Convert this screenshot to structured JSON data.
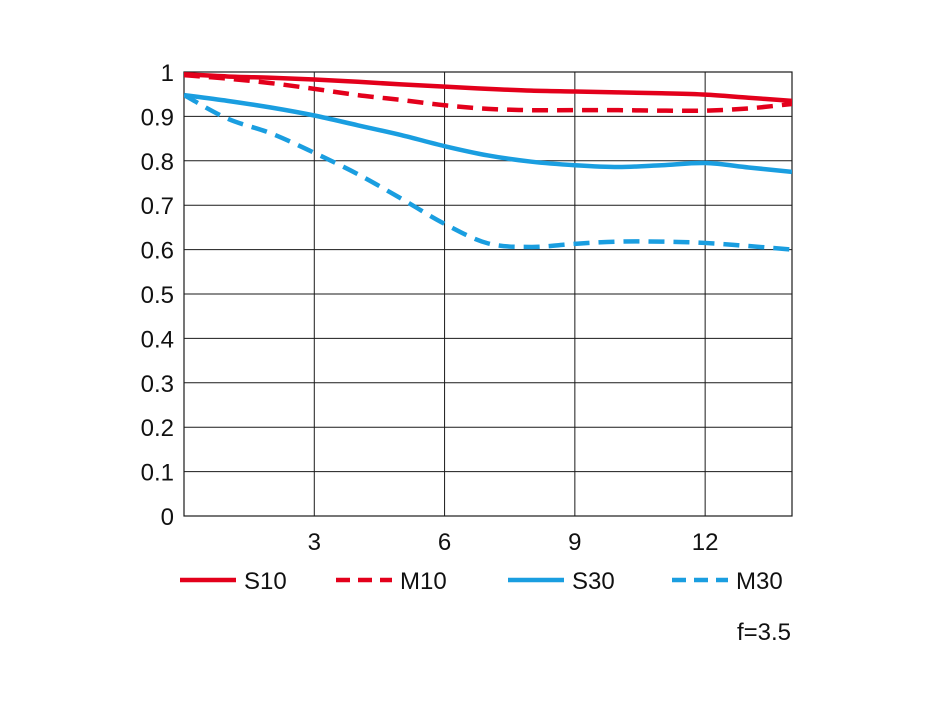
{
  "chart_data": {
    "type": "line",
    "title": "",
    "xlabel": "",
    "ylabel": "",
    "xlim": [
      0,
      14
    ],
    "ylim": [
      0,
      1
    ],
    "x_ticks": [
      3,
      6,
      9,
      12
    ],
    "x_tick_labels": [
      "3",
      "6",
      "9",
      "12"
    ],
    "y_ticks": [
      0,
      0.1,
      0.2,
      0.3,
      0.4,
      0.5,
      0.6,
      0.7,
      0.8,
      0.9,
      1
    ],
    "y_tick_labels": [
      "0",
      "0.1",
      "0.2",
      "0.3",
      "0.4",
      "0.5",
      "0.6",
      "0.7",
      "0.8",
      "0.9",
      "1"
    ],
    "grid": true,
    "legend_position": "bottom",
    "annotation": "f=3.5",
    "series": [
      {
        "name": "S10",
        "color": "#e3001b",
        "dash": "solid",
        "x": [
          0,
          1,
          2,
          3,
          4,
          5,
          6,
          7,
          8,
          9,
          10,
          11,
          12,
          13,
          14
        ],
        "y": [
          0.995,
          0.99,
          0.987,
          0.983,
          0.978,
          0.972,
          0.967,
          0.962,
          0.958,
          0.956,
          0.954,
          0.952,
          0.949,
          0.942,
          0.935
        ]
      },
      {
        "name": "M10",
        "color": "#e3001b",
        "dash": "dashed",
        "x": [
          0,
          1,
          2,
          3,
          4,
          5,
          6,
          7,
          8,
          9,
          10,
          11,
          12,
          13,
          14
        ],
        "y": [
          0.993,
          0.985,
          0.975,
          0.962,
          0.948,
          0.937,
          0.925,
          0.917,
          0.914,
          0.914,
          0.914,
          0.913,
          0.913,
          0.918,
          0.928
        ]
      },
      {
        "name": "S30",
        "color": "#1a9ee0",
        "dash": "solid",
        "x": [
          0,
          1,
          2,
          3,
          4,
          5,
          6,
          7,
          8,
          9,
          10,
          11,
          12,
          13,
          14
        ],
        "y": [
          0.948,
          0.935,
          0.92,
          0.902,
          0.88,
          0.858,
          0.833,
          0.812,
          0.798,
          0.79,
          0.786,
          0.79,
          0.795,
          0.785,
          0.775
        ]
      },
      {
        "name": "M30",
        "color": "#1a9ee0",
        "dash": "dashed",
        "x": [
          0,
          1,
          2,
          3,
          4,
          5,
          6,
          7,
          8,
          9,
          10,
          11,
          12,
          13,
          14
        ],
        "y": [
          0.948,
          0.895,
          0.862,
          0.818,
          0.77,
          0.715,
          0.658,
          0.614,
          0.606,
          0.613,
          0.618,
          0.618,
          0.615,
          0.608,
          0.6
        ]
      }
    ]
  }
}
